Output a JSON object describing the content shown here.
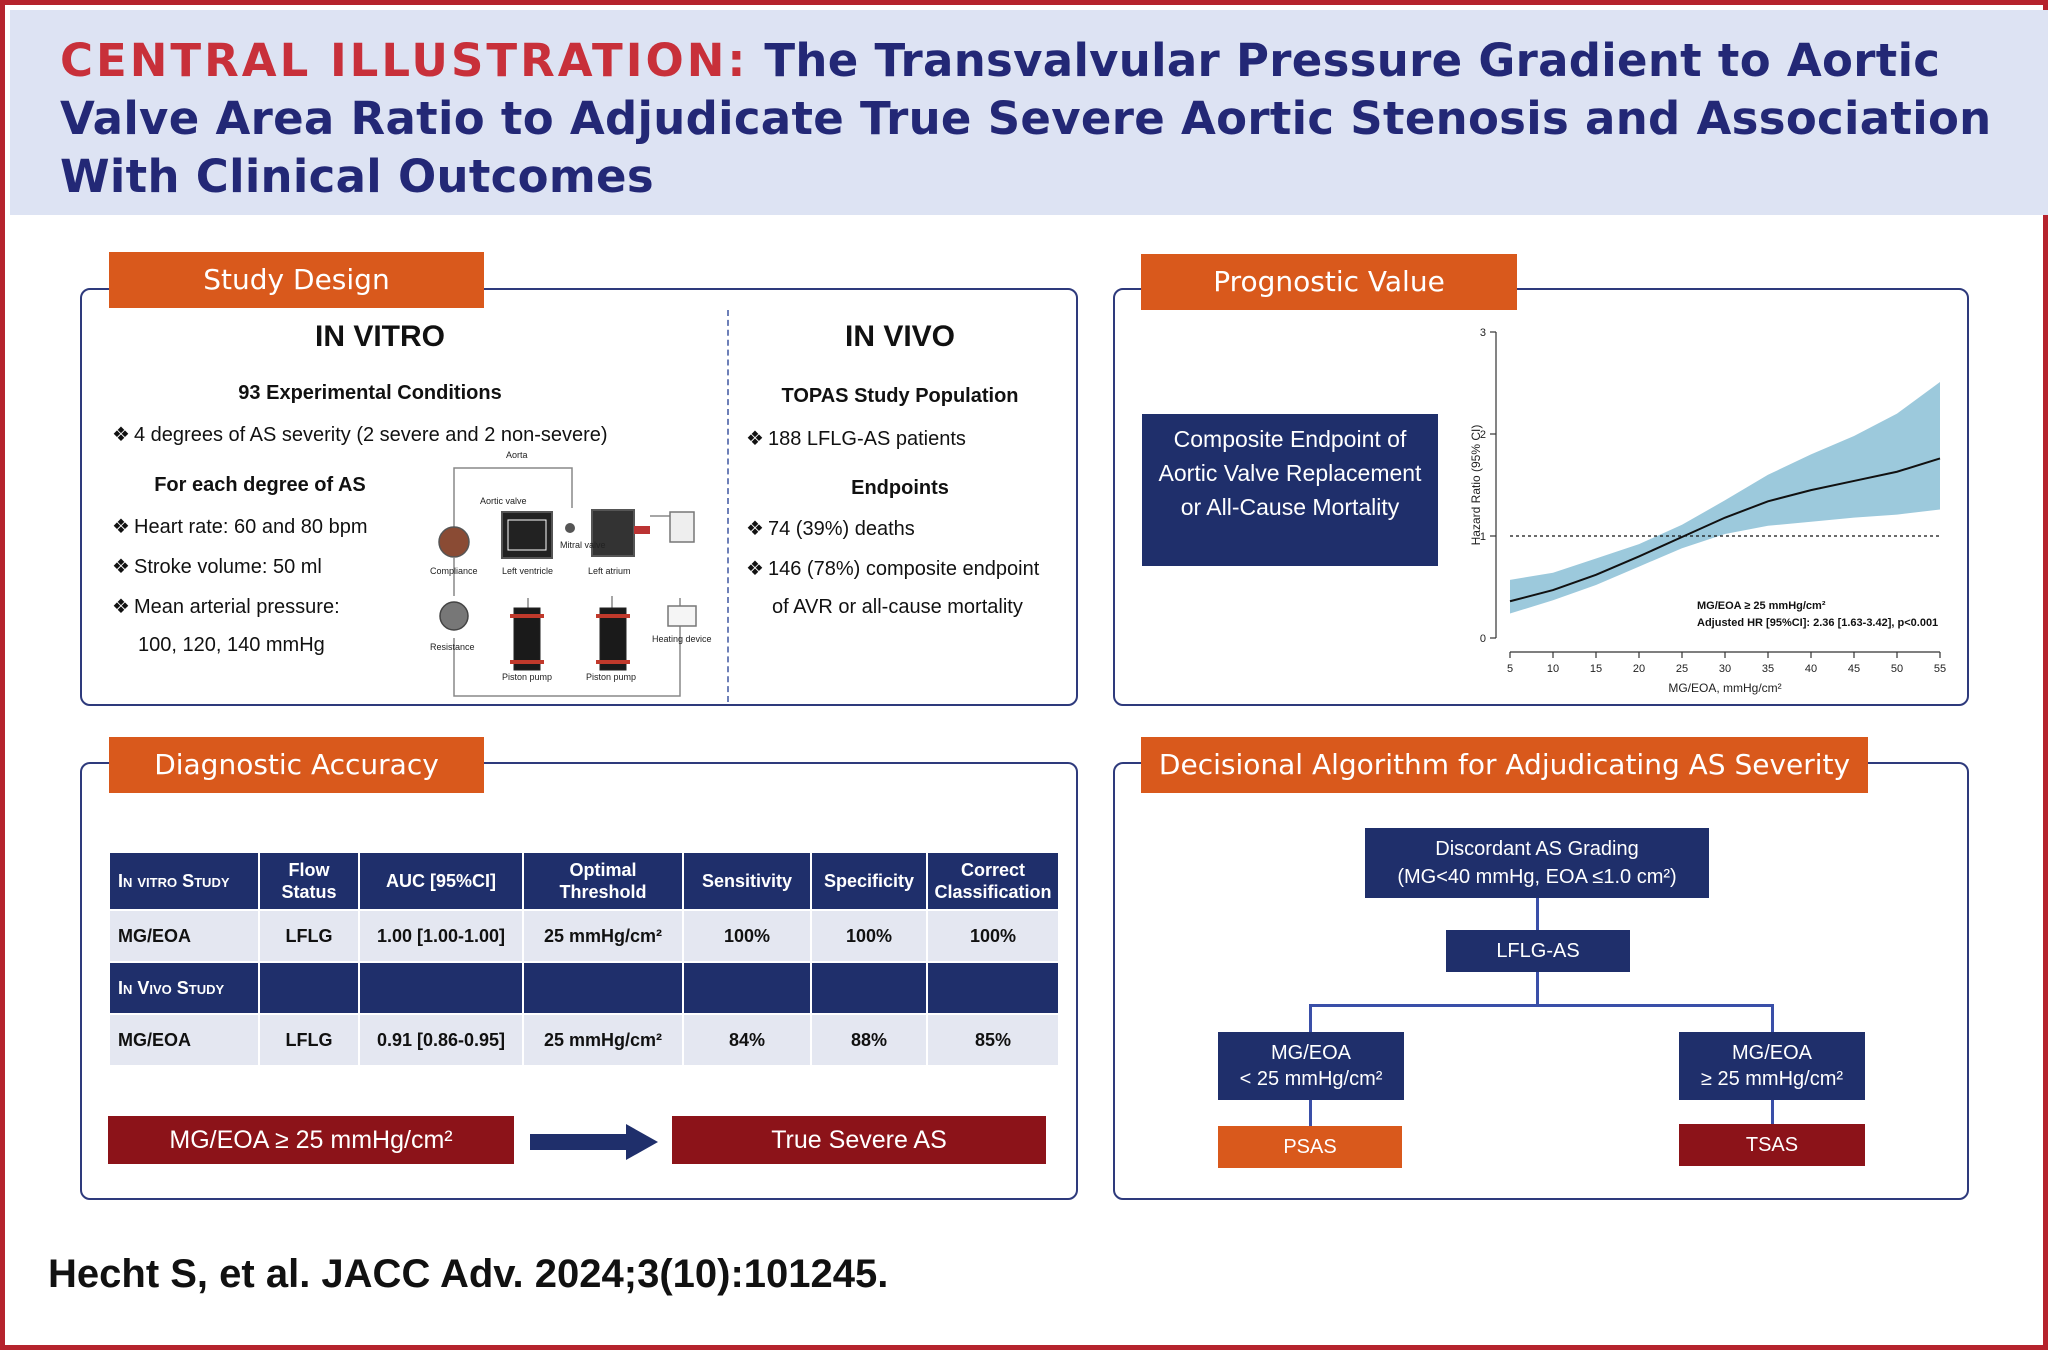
{
  "header": {
    "label": "CENTRAL ILLUSTRATION:",
    "title": "The Transvalvular Pressure Gradient to Aortic Valve Area Ratio to Adjudicate True Severe Aortic Stenosis and Association With Clinical Outcomes"
  },
  "study_design": {
    "tab": "Study Design",
    "in_vitro": {
      "heading": "IN VITRO",
      "subheading": "93 Experimental Conditions",
      "bullet_1": "4 degrees of AS severity (2 severe and 2 non-severe)",
      "subheading_2": "For each degree of AS",
      "bullet_2": "Heart rate: 60 and 80 bpm",
      "bullet_3": "Stroke volume: 50 ml",
      "bullet_4": "Mean arterial pressure:",
      "bullet_4_cont": "100, 120, 140 mmHg",
      "apparatus_labels": {
        "aorta": "Aorta",
        "aortic_valve": "Aortic valve",
        "mitral_valve": "Mitral valve",
        "compliance": "Compliance",
        "left_ventricle": "Left ventricle",
        "left_atrium": "Left atrium",
        "resistance": "Resistance",
        "piston_pump_1": "Piston pump",
        "piston_pump_2": "Piston pump",
        "heating_device": "Heating device"
      }
    },
    "in_vivo": {
      "heading": "IN VIVO",
      "subheading": "TOPAS Study Population",
      "bullet_1": "188 LFLG-AS patients",
      "subheading_2": "Endpoints",
      "bullet_2": "74 (39%) deaths",
      "bullet_3": "146 (78%) composite endpoint",
      "bullet_3_cont": "of AVR or all-cause mortality"
    }
  },
  "prognostic": {
    "tab": "Prognostic Value",
    "endpoint_box": "Composite Endpoint of Aortic Valve Replacement or All-Cause Mortality",
    "annotation_1": "MG/EOA ≥ 25 mmHg/cm²",
    "annotation_2": "Adjusted HR [95%CI]: 2.36 [1.63-3.42], p<0.001"
  },
  "chart_data": {
    "type": "line",
    "xlabel": "MG/EOA, mmHg/cm²",
    "ylabel": "Hazard Ratio (95% CI)",
    "xlim": [
      5,
      55
    ],
    "ylim": [
      0,
      3
    ],
    "x_ticks": [
      5,
      10,
      15,
      20,
      25,
      30,
      35,
      40,
      45,
      50,
      55
    ],
    "y_ticks": [
      0,
      1,
      2,
      3
    ],
    "reference_line": 1,
    "series": [
      {
        "x": [
          5,
          10,
          15,
          20,
          25,
          30,
          35,
          40,
          45,
          50,
          55
        ],
        "y": [
          0.36,
          0.47,
          0.62,
          0.8,
          0.99,
          1.18,
          1.34,
          1.45,
          1.54,
          1.63,
          1.76
        ],
        "ci_low": [
          0.24,
          0.37,
          0.52,
          0.7,
          0.88,
          1.02,
          1.1,
          1.14,
          1.18,
          1.21,
          1.26
        ],
        "ci_high": [
          0.57,
          0.64,
          0.78,
          0.92,
          1.11,
          1.35,
          1.6,
          1.8,
          1.98,
          2.2,
          2.51
        ]
      }
    ],
    "grid": false
  },
  "diagnostic": {
    "tab": "Diagnostic Accuracy",
    "columns": [
      "In vitro Study",
      "Flow Status",
      "AUC [95%CI]",
      "Optimal Threshold",
      "Sensitivity",
      "Specificity",
      "Correct Classification"
    ],
    "row_1": [
      "MG/EOA",
      "LFLG",
      "1.00 [1.00-1.00]",
      "25 mmHg/cm²",
      "100%",
      "100%",
      "100%"
    ],
    "section_2": "In Vivo Study",
    "row_2": [
      "MG/EOA",
      "LFLG",
      "0.91 [0.86-0.95]",
      "25 mmHg/cm²",
      "84%",
      "88%",
      "85%"
    ],
    "criterion": "MG/EOA ≥ 25 mmHg/cm²",
    "result": "True Severe AS"
  },
  "algorithm": {
    "tab": "Decisional Algorithm for Adjudicating AS Severity",
    "top_line_1": "Discordant AS Grading",
    "top_line_2": "(MG<40 mmHg, EOA ≤1.0 cm²)",
    "middle": "LFLG-AS",
    "left_line_1": "MG/EOA",
    "left_line_2": "< 25 mmHg/cm²",
    "right_line_1": "MG/EOA",
    "right_line_2": "≥ 25 mmHg/cm²",
    "left_result": "PSAS",
    "right_result": "TSAS"
  },
  "citation": "Hecht S, et al. JACC Adv. 2024;3(10):101245.",
  "colors": {
    "navy": "#1f2f6b",
    "orange": "#d9591c",
    "dark_red": "#8c1319",
    "header_bg": "#dde3f3",
    "ci_band": "#9cc9dc"
  }
}
